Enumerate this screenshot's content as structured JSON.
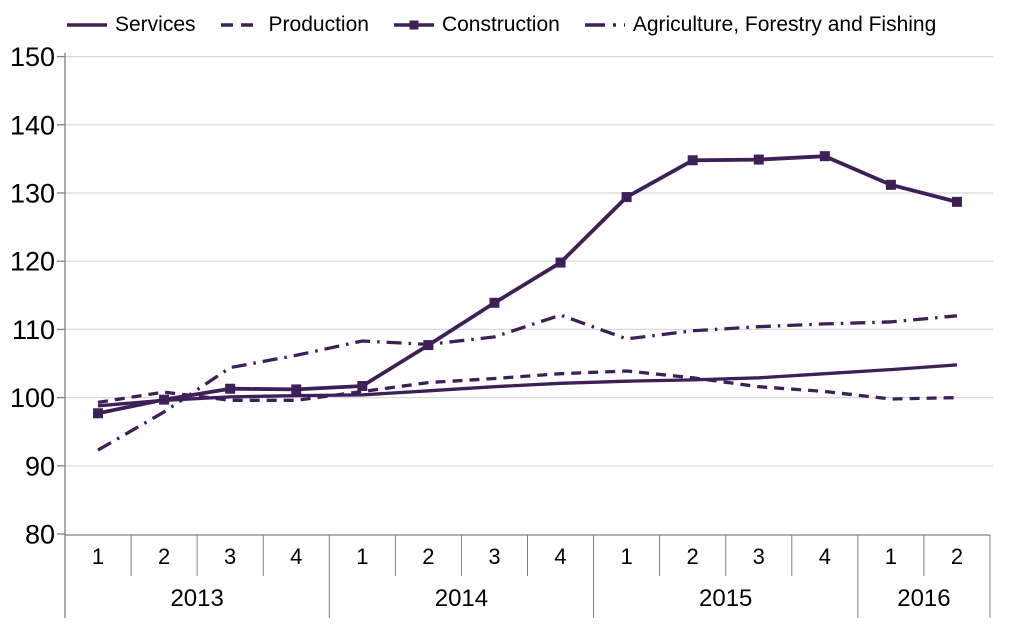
{
  "legend": [
    {
      "label": "Services",
      "style": "solid"
    },
    {
      "label": "Production",
      "style": "dashed"
    },
    {
      "label": "Construction",
      "style": "solid-marker"
    },
    {
      "label": "Agriculture, Forestry and Fishing",
      "style": "dashdot"
    }
  ],
  "chart_data": {
    "type": "line",
    "title": "",
    "xlabel": "",
    "ylabel": "",
    "categories": [
      "2013 Q1",
      "2013 Q2",
      "2013 Q3",
      "2013 Q4",
      "2014 Q1",
      "2014 Q2",
      "2014 Q3",
      "2014 Q4",
      "2015 Q1",
      "2015 Q2",
      "2015 Q3",
      "2015 Q4",
      "2016 Q1",
      "2016 Q2"
    ],
    "x_axis": {
      "years": [
        {
          "label": "2013",
          "quarters": [
            "1",
            "2",
            "3",
            "4"
          ]
        },
        {
          "label": "2014",
          "quarters": [
            "1",
            "2",
            "3",
            "4"
          ]
        },
        {
          "label": "2015",
          "quarters": [
            "1",
            "2",
            "3",
            "4"
          ]
        },
        {
          "label": "2016",
          "quarters": [
            "1",
            "2"
          ]
        }
      ]
    },
    "y_axis": {
      "min": 80,
      "max": 150,
      "ticks": [
        150,
        140,
        130,
        120,
        110,
        100,
        90,
        80
      ]
    },
    "grid": "horizontal",
    "legend_position": "top",
    "series": [
      {
        "name": "Services",
        "line_style": "solid",
        "marker": "none",
        "values": [
          98.8,
          99.6,
          100.1,
          100.3,
          100.4,
          101.0,
          101.6,
          102.1,
          102.4,
          102.6,
          102.9,
          103.5,
          104.1,
          104.8
        ]
      },
      {
        "name": "Production",
        "line_style": "dashed",
        "marker": "none",
        "values": [
          99.3,
          100.8,
          99.6,
          99.6,
          100.9,
          102.2,
          102.8,
          103.5,
          103.9,
          102.9,
          101.6,
          100.9,
          99.8,
          100.0
        ]
      },
      {
        "name": "Construction",
        "line_style": "solid",
        "marker": "square",
        "values": [
          97.7,
          99.7,
          101.3,
          101.2,
          101.7,
          107.7,
          113.9,
          119.8,
          129.4,
          134.8,
          134.9,
          135.4,
          131.2,
          128.7
        ]
      },
      {
        "name": "Agriculture, Forestry and Fishing",
        "line_style": "dashdot",
        "marker": "none",
        "values": [
          92.3,
          97.9,
          104.4,
          106.2,
          108.3,
          107.8,
          108.9,
          112.1,
          108.6,
          109.8,
          110.4,
          110.8,
          111.1,
          112.0
        ]
      }
    ],
    "colors": {
      "line": "#3e1f58",
      "grid": "#d9d9d9",
      "axis": "#808080",
      "text": "#000000"
    }
  }
}
